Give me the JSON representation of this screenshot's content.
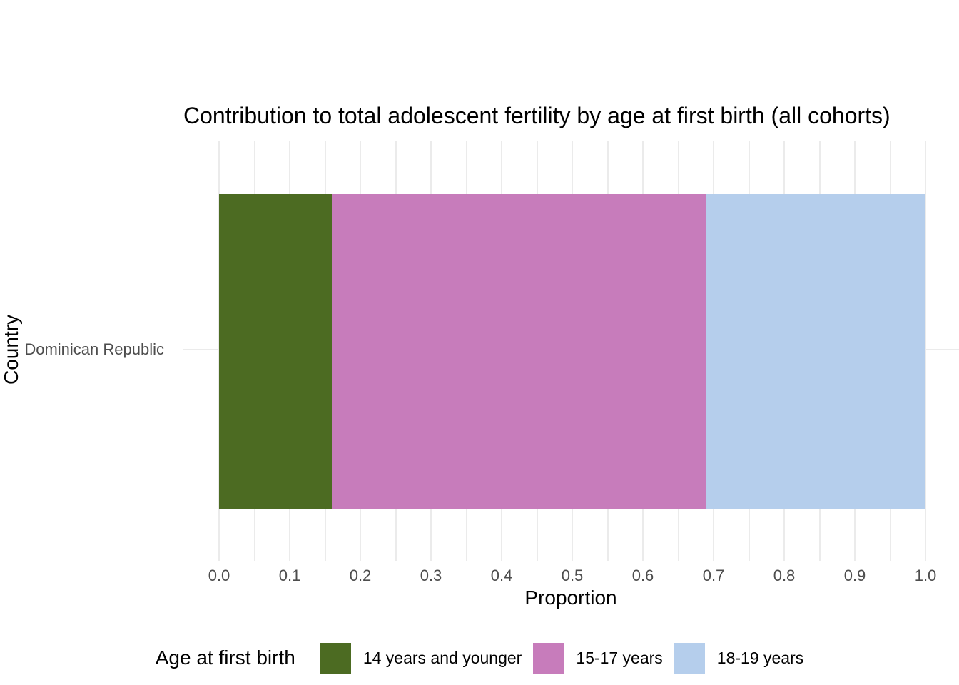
{
  "chart_data": {
    "type": "bar",
    "orientation": "horizontal",
    "stacked": true,
    "title": "Contribution to total adolescent fertility by age at first birth (all cohorts)",
    "xlabel": "Proportion",
    "ylabel": "Country",
    "categories": [
      "Dominican Republic"
    ],
    "series": [
      {
        "name": "14 years and younger",
        "color": "#4C6B22",
        "values": [
          0.16
        ]
      },
      {
        "name": "15-17 years",
        "color": "#C77CBB",
        "values": [
          0.53
        ]
      },
      {
        "name": "18-19 years",
        "color": "#B5CEEC",
        "values": [
          0.31
        ]
      }
    ],
    "xlim": [
      0,
      1
    ],
    "x_ticks": [
      "0.0",
      "0.1",
      "0.2",
      "0.3",
      "0.4",
      "0.5",
      "0.6",
      "0.7",
      "0.8",
      "0.9",
      "1.0"
    ],
    "minor_grid_step": 0.05,
    "grid": "on",
    "legend": {
      "title": "Age at first birth",
      "position": "bottom"
    }
  },
  "colors": {
    "grid": "#EBEBEB",
    "axis_text": "#4D4D4D",
    "title_text": "#000000",
    "background": "#FFFFFF"
  }
}
